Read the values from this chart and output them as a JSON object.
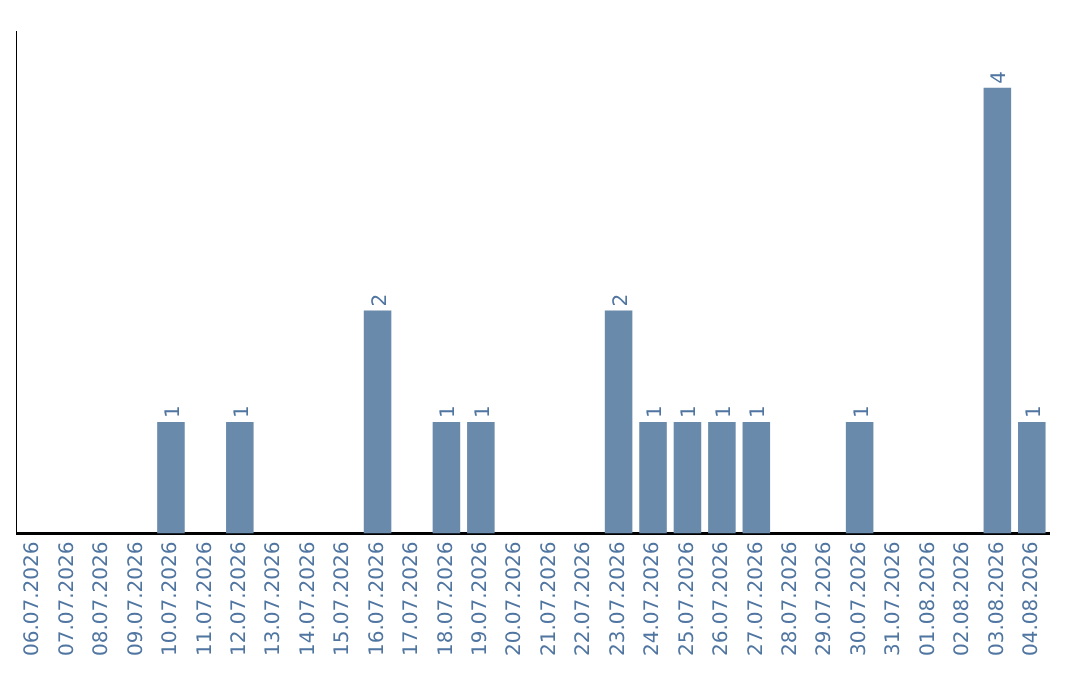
{
  "chart_data": {
    "type": "bar",
    "categories": [
      "06.07.2026",
      "07.07.2026",
      "08.07.2026",
      "09.07.2026",
      "10.07.2026",
      "11.07.2026",
      "12.07.2026",
      "13.07.2026",
      "14.07.2026",
      "15.07.2026",
      "16.07.2026",
      "17.07.2026",
      "18.07.2026",
      "19.07.2026",
      "20.07.2026",
      "21.07.2026",
      "22.07.2026",
      "23.07.2026",
      "24.07.2026",
      "25.07.2026",
      "26.07.2026",
      "27.07.2026",
      "28.07.2026",
      "29.07.2026",
      "30.07.2026",
      "31.07.2026",
      "01.08.2026",
      "02.08.2026",
      "03.08.2026",
      "04.08.2026"
    ],
    "values": [
      0,
      0,
      0,
      0,
      1,
      0,
      1,
      0,
      0,
      0,
      2,
      0,
      1,
      1,
      0,
      0,
      0,
      2,
      1,
      1,
      1,
      1,
      0,
      0,
      1,
      0,
      0,
      0,
      4,
      1
    ],
    "value_labels": [
      null,
      null,
      null,
      null,
      "1",
      null,
      "1",
      null,
      null,
      null,
      "2",
      null,
      "1",
      "1",
      null,
      null,
      null,
      "2",
      "1",
      "1",
      "1",
      "1",
      null,
      null,
      "1",
      null,
      null,
      null,
      "4",
      "1"
    ],
    "color": "#6a8aab",
    "grid": false,
    "legend": false,
    "tick_labels": "x"
  }
}
